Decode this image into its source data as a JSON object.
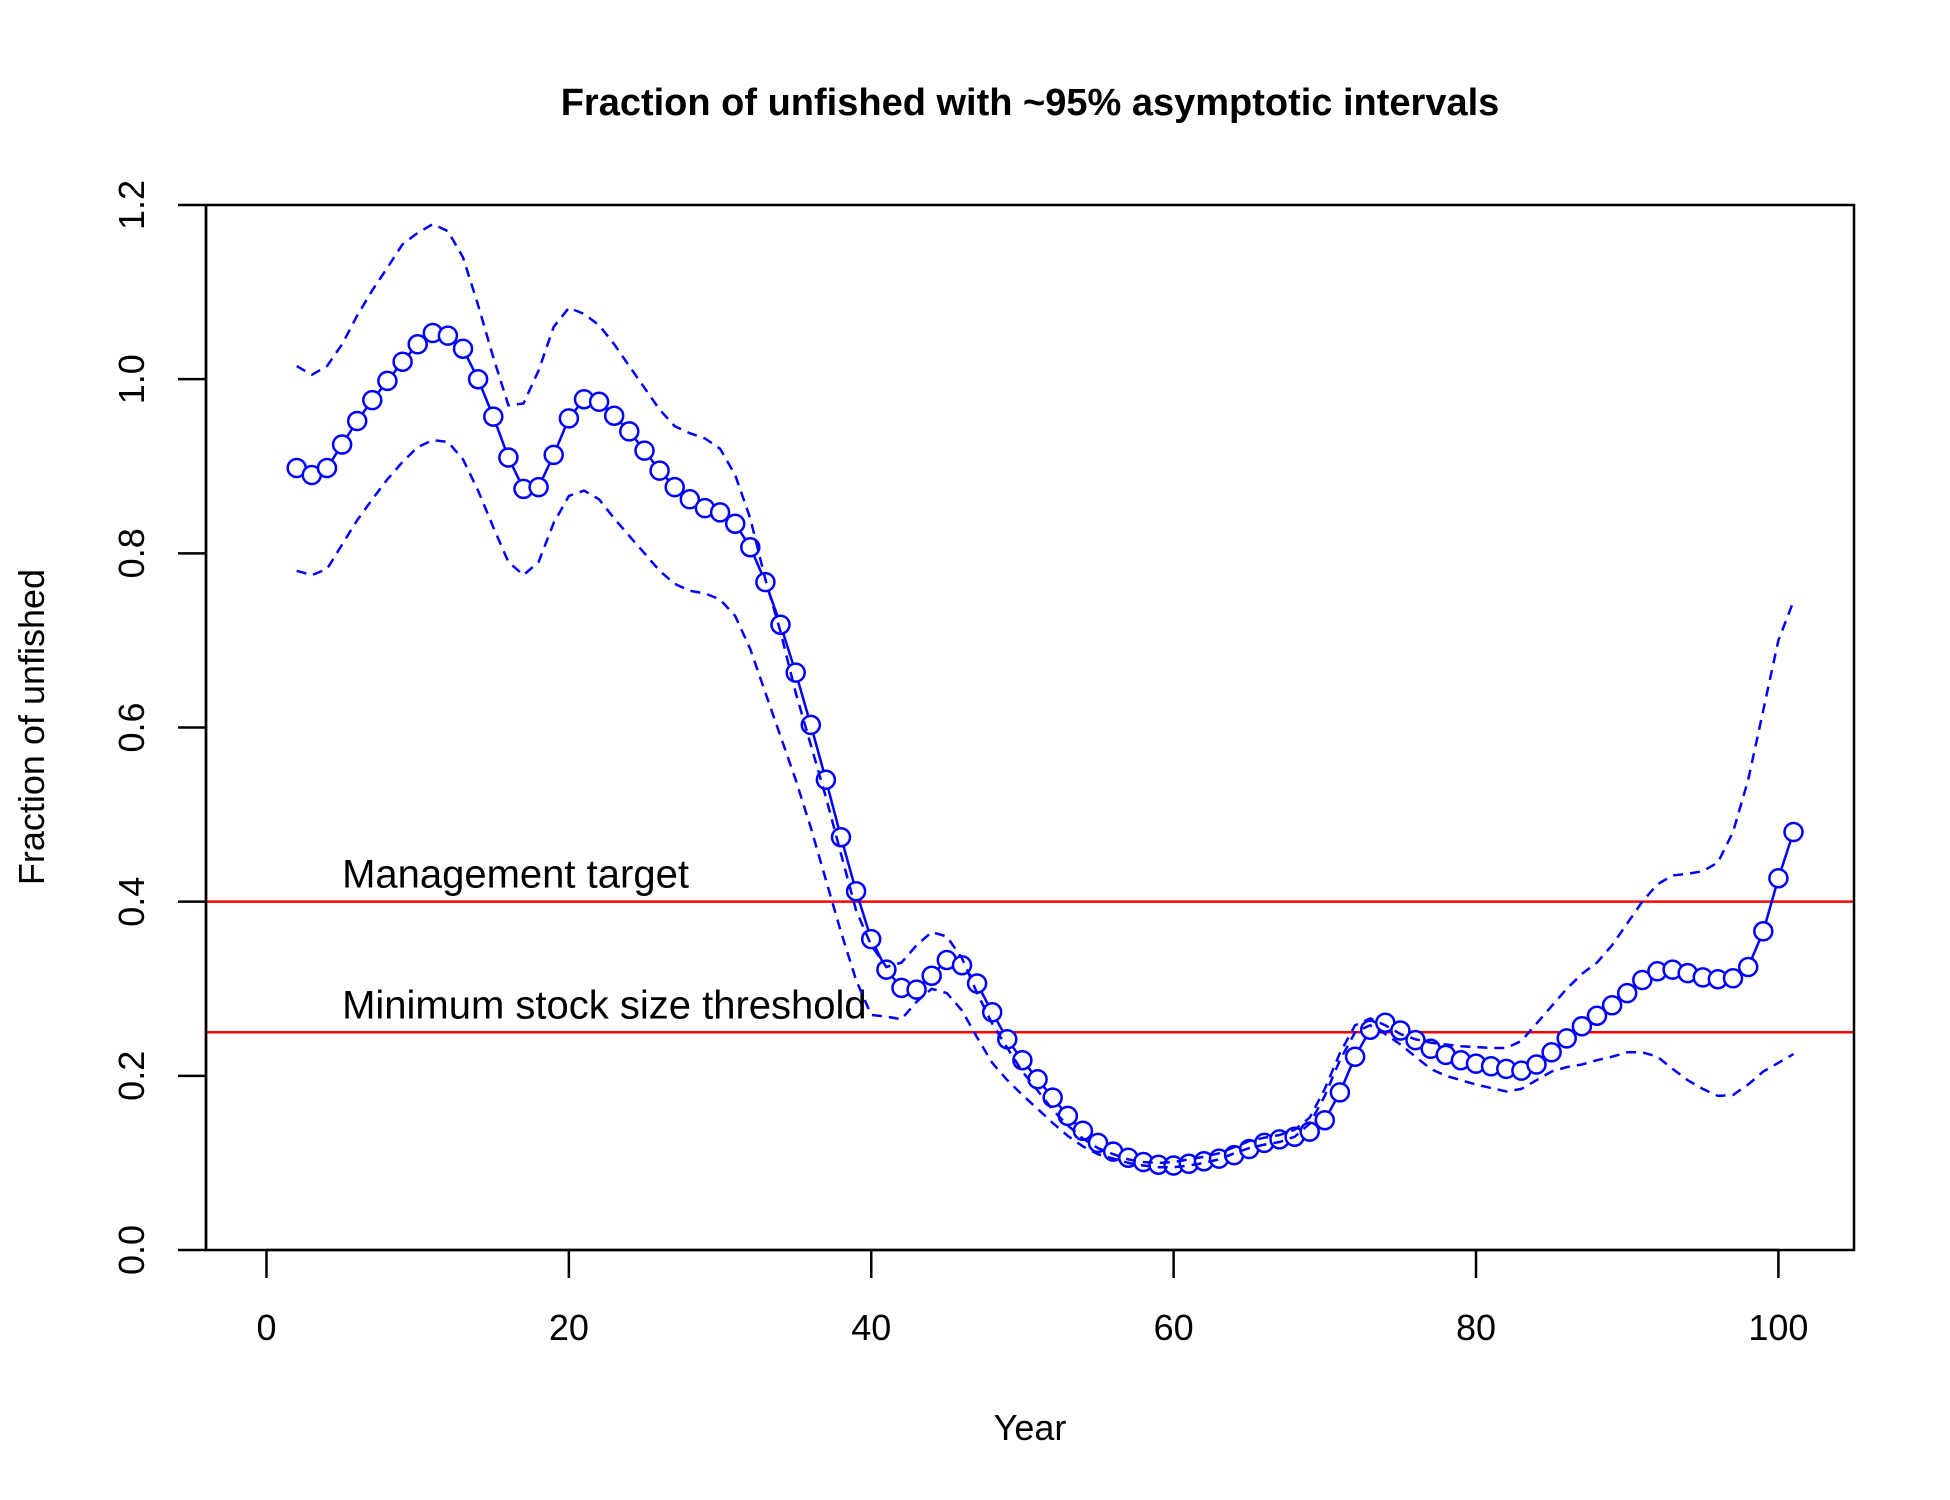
{
  "chart_data": {
    "type": "line",
    "title": "Fraction of unfished with ~95% asymptotic intervals",
    "xlabel": "Year",
    "ylabel": "Fraction of unfished",
    "xlim": [
      -4,
      105
    ],
    "ylim": [
      0,
      1.2
    ],
    "x_ticks": [
      "0",
      "20",
      "40",
      "60",
      "80",
      "100"
    ],
    "y_ticks": [
      "0.0",
      "0.2",
      "0.4",
      "0.6",
      "0.8",
      "1.0",
      "1.2"
    ],
    "grid": false,
    "legend": "none",
    "colors": {
      "series": "#0000ff",
      "reference": "#ff0000",
      "axis": "#000000"
    },
    "x": [
      2,
      3,
      4,
      5,
      6,
      7,
      8,
      9,
      10,
      11,
      12,
      13,
      14,
      15,
      16,
      17,
      18,
      19,
      20,
      21,
      22,
      23,
      24,
      25,
      26,
      27,
      28,
      29,
      30,
      31,
      32,
      33,
      34,
      35,
      36,
      37,
      38,
      39,
      40,
      41,
      42,
      43,
      44,
      45,
      46,
      47,
      48,
      49,
      50,
      51,
      52,
      53,
      54,
      55,
      56,
      57,
      58,
      59,
      60,
      61,
      62,
      63,
      64,
      65,
      66,
      67,
      68,
      69,
      70,
      71,
      72,
      73,
      74,
      75,
      76,
      77,
      78,
      79,
      80,
      81,
      82,
      83,
      84,
      85,
      86,
      87,
      88,
      89,
      90,
      91,
      92,
      93,
      94,
      95,
      96,
      97,
      98,
      99,
      100,
      101
    ],
    "series": [
      {
        "style": "solid-with-circles",
        "values": [
          0.898,
          0.89,
          0.898,
          0.925,
          0.952,
          0.976,
          0.998,
          1.02,
          1.04,
          1.053,
          1.05,
          1.035,
          1.0,
          0.957,
          0.91,
          0.874,
          0.876,
          0.913,
          0.955,
          0.977,
          0.974,
          0.958,
          0.94,
          0.918,
          0.895,
          0.876,
          0.862,
          0.852,
          0.847,
          0.834,
          0.807,
          0.767,
          0.718,
          0.663,
          0.603,
          0.54,
          0.474,
          0.412,
          0.357,
          0.322,
          0.301,
          0.299,
          0.315,
          0.333,
          0.327,
          0.306,
          0.273,
          0.242,
          0.218,
          0.196,
          0.175,
          0.154,
          0.137,
          0.123,
          0.113,
          0.106,
          0.101,
          0.098,
          0.097,
          0.099,
          0.102,
          0.105,
          0.109,
          0.116,
          0.123,
          0.127,
          0.13,
          0.136,
          0.149,
          0.181,
          0.222,
          0.253,
          0.261,
          0.252,
          0.241,
          0.231,
          0.224,
          0.218,
          0.214,
          0.211,
          0.208,
          0.206,
          0.213,
          0.227,
          0.243,
          0.257,
          0.269,
          0.281,
          0.295,
          0.31,
          0.32,
          0.322,
          0.318,
          0.313,
          0.311,
          0.312,
          0.325,
          0.366,
          0.427,
          0.48
        ]
      },
      {
        "style": "dashed",
        "values": [
          1.015,
          1.005,
          1.015,
          1.04,
          1.073,
          1.102,
          1.128,
          1.155,
          1.168,
          1.178,
          1.17,
          1.14,
          1.085,
          1.025,
          0.97,
          0.972,
          1.01,
          1.06,
          1.082,
          1.075,
          1.062,
          1.04,
          1.015,
          0.99,
          0.965,
          0.946,
          0.938,
          0.932,
          0.92,
          0.89,
          0.84,
          0.77,
          0.71,
          0.64,
          0.58,
          0.52,
          0.455,
          0.39,
          0.35,
          0.325,
          0.33,
          0.35,
          0.365,
          0.36,
          0.335,
          0.295,
          0.26,
          0.232,
          0.205,
          0.183,
          0.161,
          0.143,
          0.128,
          0.117,
          0.11,
          0.104,
          0.101,
          0.1,
          0.101,
          0.104,
          0.107,
          0.111,
          0.118,
          0.125,
          0.129,
          0.132,
          0.138,
          0.152,
          0.185,
          0.226,
          0.258,
          0.266,
          0.258,
          0.248,
          0.242,
          0.238,
          0.236,
          0.234,
          0.233,
          0.232,
          0.232,
          0.24,
          0.26,
          0.28,
          0.3,
          0.317,
          0.33,
          0.35,
          0.375,
          0.4,
          0.42,
          0.43,
          0.432,
          0.435,
          0.445,
          0.48,
          0.54,
          0.62,
          0.7,
          0.745
        ]
      },
      {
        "style": "dashed",
        "values": [
          0.78,
          0.775,
          0.782,
          0.81,
          0.838,
          0.862,
          0.885,
          0.905,
          0.922,
          0.93,
          0.928,
          0.908,
          0.872,
          0.83,
          0.79,
          0.775,
          0.79,
          0.835,
          0.866,
          0.872,
          0.862,
          0.84,
          0.82,
          0.8,
          0.78,
          0.765,
          0.757,
          0.754,
          0.747,
          0.728,
          0.69,
          0.64,
          0.59,
          0.54,
          0.485,
          0.425,
          0.365,
          0.31,
          0.27,
          0.268,
          0.265,
          0.285,
          0.3,
          0.295,
          0.275,
          0.244,
          0.215,
          0.195,
          0.178,
          0.162,
          0.146,
          0.131,
          0.119,
          0.11,
          0.105,
          0.1,
          0.097,
          0.095,
          0.095,
          0.097,
          0.1,
          0.104,
          0.111,
          0.117,
          0.121,
          0.124,
          0.13,
          0.145,
          0.177,
          0.218,
          0.25,
          0.258,
          0.248,
          0.236,
          0.222,
          0.208,
          0.2,
          0.195,
          0.19,
          0.186,
          0.182,
          0.185,
          0.195,
          0.205,
          0.21,
          0.213,
          0.218,
          0.222,
          0.227,
          0.227,
          0.222,
          0.208,
          0.195,
          0.185,
          0.177,
          0.178,
          0.19,
          0.205,
          0.215,
          0.225
        ]
      }
    ],
    "reference_lines": [
      {
        "y": 0.4,
        "label": "Management target"
      },
      {
        "y": 0.25,
        "label": "Minimum stock size threshold"
      }
    ]
  }
}
